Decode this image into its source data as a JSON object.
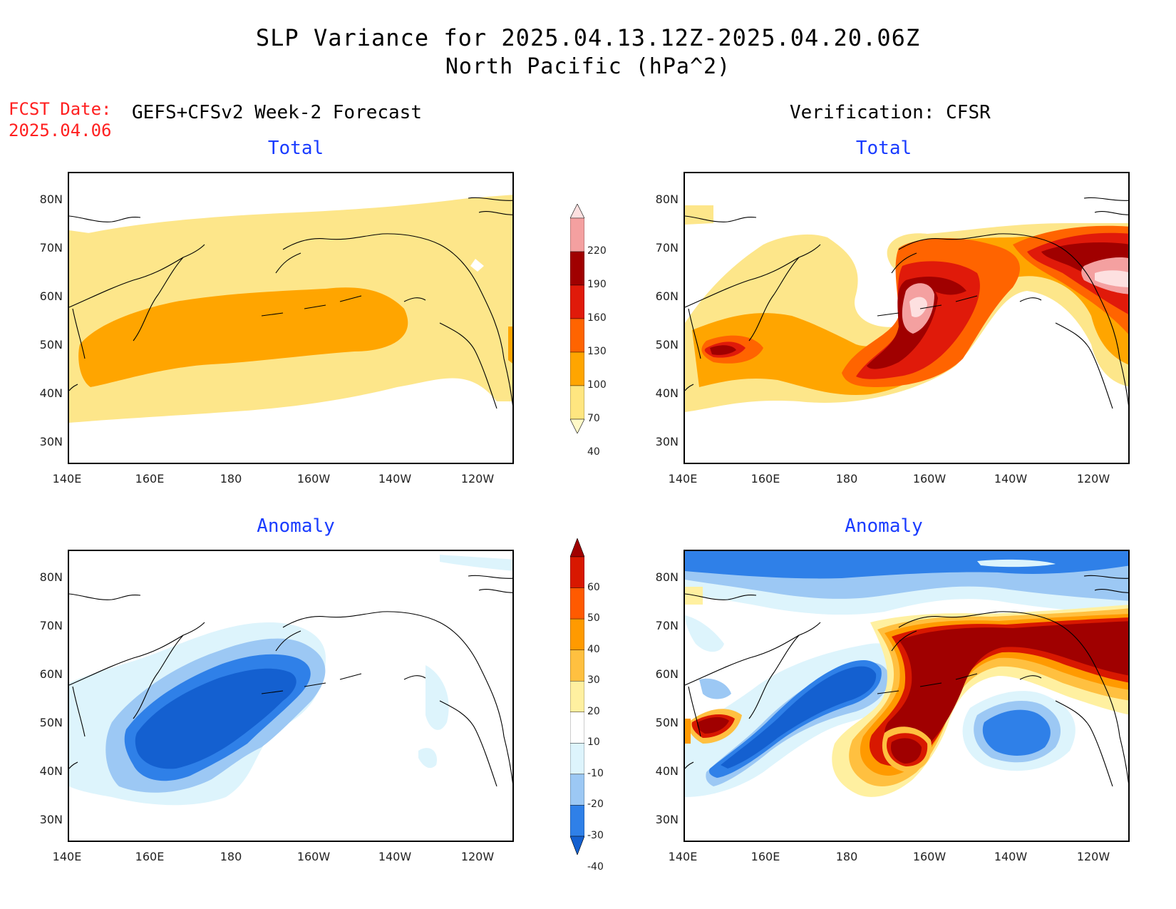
{
  "header": {
    "title_line1": "SLP Variance for 2025.04.13.12Z-2025.04.20.06Z",
    "title_line2": "North Pacific (hPa^2)",
    "fcst_label": "FCST Date:",
    "fcst_date": "2025.04.06",
    "left_model": "GEFS+CFSv2 Week-2 Forecast",
    "right_model": "Verification: CFSR"
  },
  "panels": {
    "tl_title": "Total",
    "tr_title": "Total",
    "bl_title": "Anomaly",
    "br_title": "Anomaly"
  },
  "axes": {
    "lat_labels": [
      "80N",
      "70N",
      "60N",
      "50N",
      "40N",
      "30N"
    ],
    "lon_labels": [
      "140E",
      "160E",
      "180",
      "160W",
      "140W",
      "120W"
    ]
  },
  "colorbars": {
    "total": {
      "levels": [
        "40",
        "70",
        "100",
        "130",
        "160",
        "190",
        "220"
      ],
      "colors": [
        "#fff9c8",
        "#ffe680",
        "#ffa500",
        "#ff6400",
        "#e01a0a",
        "#a00000",
        "#f4a0a0",
        "#fde0e0"
      ]
    },
    "anomaly": {
      "levels": [
        "-40",
        "-30",
        "-20",
        "-10",
        "10",
        "20",
        "30",
        "40",
        "50",
        "60"
      ],
      "colors": [
        "#1460d0",
        "#2f80e8",
        "#9cc8f4",
        "#ddf4fc",
        "#ffffff",
        "#fff0a0",
        "#ffc040",
        "#ff9a00",
        "#ff5a00",
        "#d81800",
        "#a00000"
      ]
    }
  },
  "colors": {
    "title_blue": "#1a3cff",
    "fcst_red": "#ff2020"
  }
}
